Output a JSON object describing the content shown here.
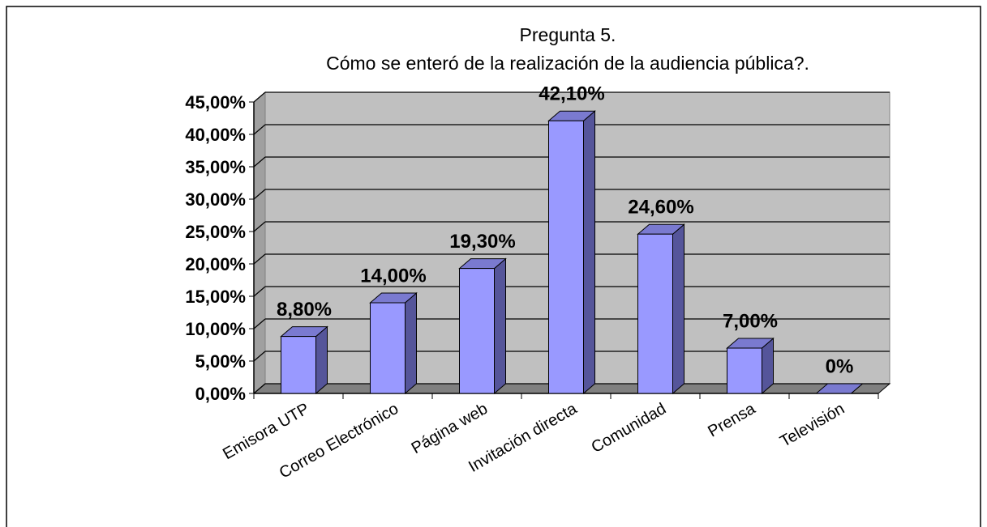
{
  "chart_data": {
    "type": "bar3d",
    "title": "Pregunta 5.",
    "subtitle": "Cómo se enteró de la realización de la audiencia pública?.",
    "categories": [
      "Emisora UTP",
      "Correo Electrónico",
      "Página web",
      "Invitación directa",
      "Comunidad",
      "Prensa",
      "Televisión"
    ],
    "values": [
      8.8,
      14,
      19.3,
      42.1,
      24.6,
      7,
      0
    ],
    "value_labels": [
      "8,80%",
      "14,00%",
      "19,30%",
      "42,10%",
      "24,60%",
      "7,00%",
      "0%"
    ],
    "color": "#9999ff",
    "ylim": [
      0,
      45
    ],
    "yticks": [
      {
        "value": 0,
        "label": "0,00%"
      },
      {
        "value": 5,
        "label": "5,00%"
      },
      {
        "value": 10,
        "label": "10,00%"
      },
      {
        "value": 15,
        "label": "15,00%"
      },
      {
        "value": 20,
        "label": "20,00%"
      },
      {
        "value": 25,
        "label": "25,00%"
      },
      {
        "value": 30,
        "label": "30,00%"
      },
      {
        "value": 35,
        "label": "35,00%"
      },
      {
        "value": 40,
        "label": "40,00%"
      },
      {
        "value": 45,
        "label": "45,00%"
      }
    ],
    "grid": true
  }
}
